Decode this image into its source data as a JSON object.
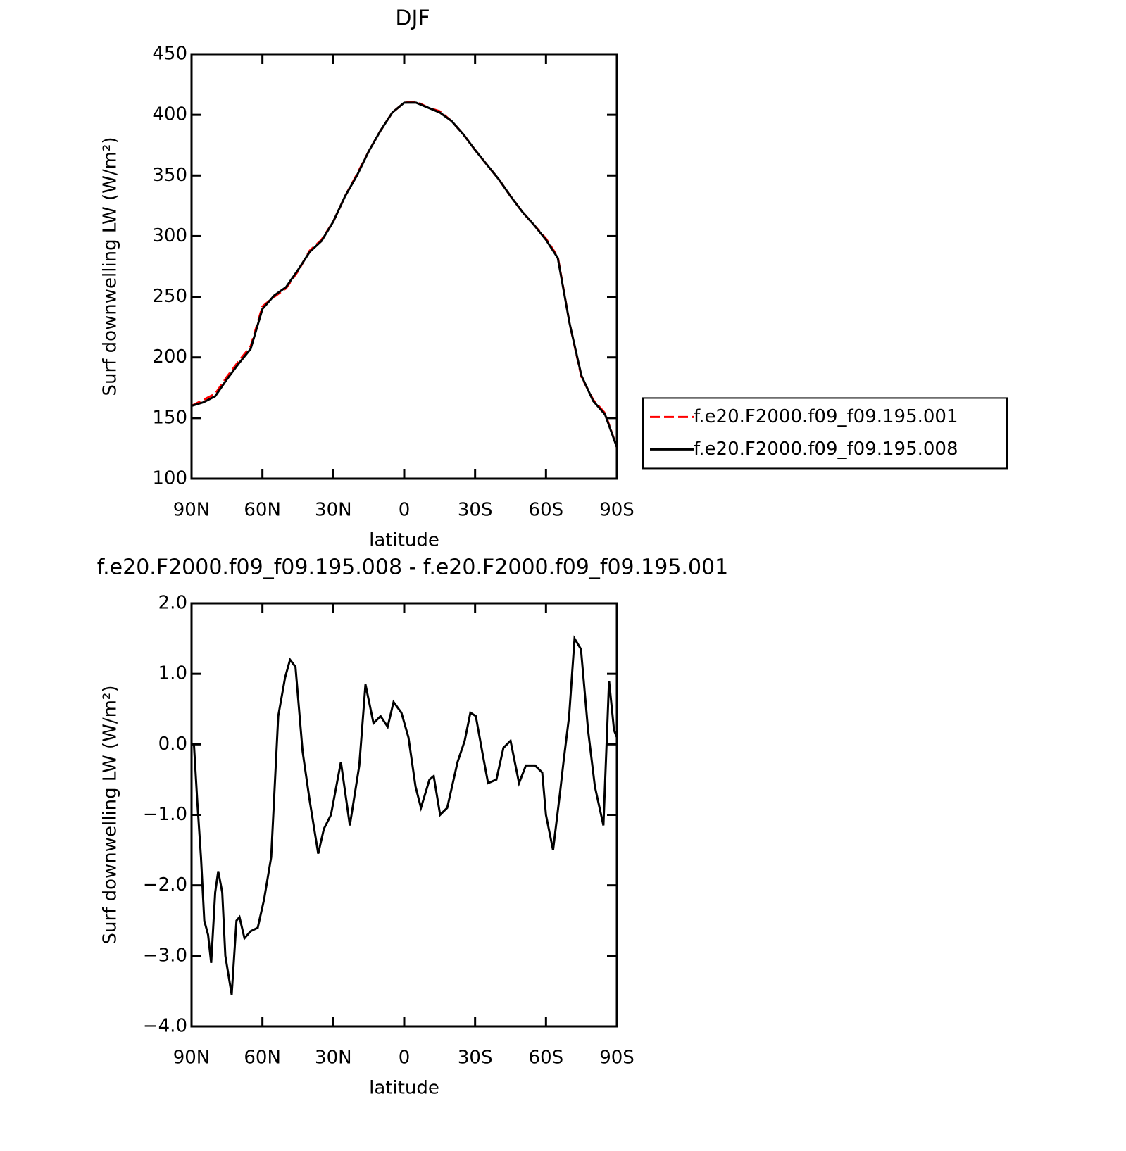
{
  "chart_data": [
    {
      "type": "line",
      "title": "DJF",
      "x_label": "latitude",
      "y_label": "Surf downwelling LW (W/m²)",
      "x": [
        90,
        85,
        80,
        75,
        70,
        65,
        60,
        55,
        50,
        45,
        40,
        35,
        30,
        25,
        20,
        15,
        10,
        5,
        0,
        -5,
        -10,
        -15,
        -20,
        -25,
        -30,
        -35,
        -40,
        -45,
        -50,
        -55,
        -60,
        -65,
        -70,
        -75,
        -80,
        -85,
        -90
      ],
      "series": [
        {
          "name": "f.e20.F2000.f09_f09.195.001",
          "color": "#ff0000",
          "dashed": true,
          "values": [
            160,
            165,
            170,
            184,
            197,
            209,
            242,
            250,
            257,
            271,
            288,
            297,
            312,
            333,
            351,
            370,
            387,
            402,
            410,
            411,
            406,
            403,
            395,
            384,
            371,
            359,
            347,
            333,
            320,
            309,
            298,
            283,
            228,
            184,
            165,
            154,
            126
          ]
        },
        {
          "name": "f.e20.F2000.f09_f09.195.008",
          "color": "#000000",
          "dashed": false,
          "values": [
            160,
            163,
            168,
            182,
            195,
            207,
            240,
            251,
            258,
            272,
            287,
            296,
            312,
            333,
            350,
            370,
            387,
            402,
            410,
            410,
            406,
            402,
            395,
            384,
            371,
            359,
            347,
            333,
            320,
            309,
            297,
            282,
            228,
            185,
            164,
            153,
            126
          ]
        }
      ],
      "xlim": [
        90,
        -90
      ],
      "xticks": [
        {
          "value": 90,
          "label": "90N"
        },
        {
          "value": 60,
          "label": "60N"
        },
        {
          "value": 30,
          "label": "30N"
        },
        0,
        {
          "value": -30,
          "label": "30S"
        },
        {
          "value": -60,
          "label": "60S"
        },
        {
          "value": -90,
          "label": "90S"
        }
      ],
      "ylim": [
        100,
        450
      ],
      "yticks": [
        100,
        150,
        200,
        250,
        300,
        350,
        400,
        450
      ],
      "legend": "right"
    },
    {
      "type": "line",
      "title": "f.e20.F2000.f09_f09.195.008 - f.e20.F2000.f09_f09.195.001",
      "x_label": "latitude",
      "y_label": "Surf downwelling LW (W/m²)",
      "x": [
        90,
        89,
        87.6,
        86,
        84.6,
        83,
        81.7,
        80,
        78.7,
        77,
        75.7,
        73,
        71,
        69.7,
        67.6,
        65,
        62,
        59.3,
        56.3,
        53.3,
        50.4,
        48.3,
        46,
        43,
        40,
        36.4,
        34,
        31,
        26.8,
        23,
        19,
        16.4,
        13,
        10,
        7,
        4.5,
        1.2,
        -1.8,
        -4.8,
        -7.1,
        -10.7,
        -12.5,
        -15.2,
        -18.2,
        -22.6,
        -25.6,
        -28,
        -30.3,
        -33,
        -35.5,
        -39,
        -42,
        -45,
        -48.6,
        -51.5,
        -55.4,
        -58.4,
        -60,
        -63,
        -65.9,
        -67.4,
        -69.8,
        -72.1,
        -74.8,
        -77.8,
        -80.7,
        -84.3,
        -86.7,
        -88.8,
        -90
      ],
      "color": "#000000",
      "values": [
        0.0,
        0.0,
        -0.8,
        -1.6,
        -2.5,
        -2.7,
        -3.1,
        -2.1,
        -1.8,
        -2.1,
        -3.0,
        -3.55,
        -2.5,
        -2.45,
        -2.75,
        -2.65,
        -2.6,
        -2.2,
        -1.6,
        0.4,
        0.95,
        1.2,
        1.1,
        -0.1,
        -0.8,
        -1.55,
        -1.2,
        -1.0,
        -0.25,
        -1.15,
        -0.3,
        0.85,
        0.3,
        0.4,
        0.25,
        0.6,
        0.45,
        0.1,
        -0.6,
        -0.9,
        -0.5,
        -0.45,
        -1.0,
        -0.9,
        -0.25,
        0.05,
        0.45,
        0.4,
        -0.1,
        -0.55,
        -0.5,
        -0.05,
        0.05,
        -0.55,
        -0.3,
        -0.3,
        -0.4,
        -1.0,
        -1.5,
        -0.7,
        -0.25,
        0.4,
        1.5,
        1.35,
        0.2,
        -0.6,
        -1.15,
        0.9,
        0.2,
        0.1
      ],
      "xlim": [
        90,
        -90
      ],
      "xticks": [
        {
          "value": 90,
          "label": "90N"
        },
        {
          "value": 60,
          "label": "60N"
        },
        {
          "value": 30,
          "label": "30N"
        },
        0,
        {
          "value": -30,
          "label": "30S"
        },
        {
          "value": -60,
          "label": "60S"
        },
        {
          "value": -90,
          "label": "90S"
        }
      ],
      "ylim": [
        -4,
        2
      ],
      "yticks": [
        {
          "value": -4,
          "label": "−4.0"
        },
        {
          "value": -3,
          "label": "−3.0"
        },
        {
          "value": -2,
          "label": "−2.0"
        },
        {
          "value": -1,
          "label": "−1.0"
        },
        {
          "value": 0,
          "label": "0.0"
        },
        {
          "value": 1,
          "label": "1.0"
        },
        {
          "value": 2,
          "label": "2.0"
        }
      ]
    }
  ]
}
